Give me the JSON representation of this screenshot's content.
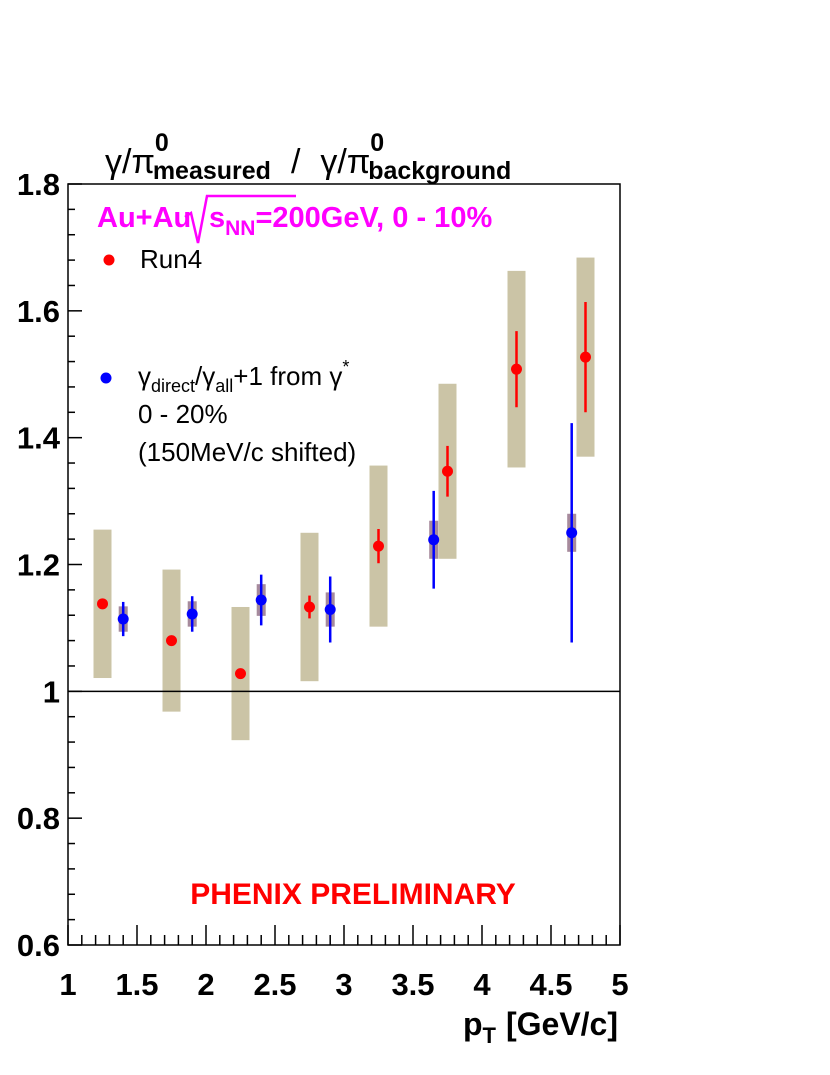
{
  "chart_data": {
    "type": "scatter",
    "ylabel": {
      "part1": "γ/π",
      "part1_sup": "0",
      "part1_sub": "measured",
      "separator": "/",
      "part2": "γ/π",
      "part2_sup": "0",
      "part2_sub": "background"
    },
    "xlabel": {
      "main": "p",
      "sub": "T",
      "unit": "[GeV/c]"
    },
    "header": {
      "prefix": "Au+Au",
      "s": "s",
      "s_sub": "NN",
      "suffix": "=200GeV, 0 - 10%"
    },
    "watermark": "PHENIX PRELIMINARY",
    "xlim": [
      1,
      5
    ],
    "ylim": [
      0.6,
      1.8
    ],
    "x_ticks": [
      1,
      1.5,
      2,
      2.5,
      3,
      3.5,
      4,
      4.5,
      5
    ],
    "x_tick_labels": [
      "1",
      "1.5",
      "2",
      "2.5",
      "3",
      "3.5",
      "4",
      "4.5",
      "5"
    ],
    "y_ticks": [
      0.6,
      0.8,
      1,
      1.2,
      1.4,
      1.6,
      1.8
    ],
    "y_tick_labels": [
      "0.6",
      "0.8",
      "1",
      "1.2",
      "1.4",
      "1.6",
      "1.8"
    ],
    "reference_line": 1,
    "grid": false,
    "legend_position": "top-left",
    "series": [
      {
        "legend_label": "Run4",
        "color": "#ff0000",
        "points": [
          {
            "x": 1.25,
            "y": 1.138,
            "err": 0.0,
            "sys": 0.117
          },
          {
            "x": 1.75,
            "y": 1.08,
            "err": 0.0,
            "sys": 0.112
          },
          {
            "x": 2.25,
            "y": 1.028,
            "err": 0.0,
            "sys": 0.105
          },
          {
            "x": 2.75,
            "y": 1.133,
            "err": 0.018,
            "sys": 0.117
          },
          {
            "x": 3.25,
            "y": 1.229,
            "err": 0.027,
            "sys": 0.127
          },
          {
            "x": 3.75,
            "y": 1.347,
            "err": 0.04,
            "sys": 0.138
          },
          {
            "x": 4.25,
            "y": 1.508,
            "err": 0.06,
            "sys": 0.155
          },
          {
            "x": 4.75,
            "y": 1.527,
            "err": 0.087,
            "sys": 0.157
          }
        ]
      },
      {
        "legend_label": "γ",
        "legend_label_sub1": "direct",
        "legend_label_mid": "/γ",
        "legend_label_sub2": "all",
        "legend_label_tail": "+1 from γ",
        "legend_label_sup": "*",
        "legend_line2": "0 - 20%",
        "legend_line3": "(150MeV/c shifted)",
        "color": "#0000ff",
        "sys_color": "#a68a9c",
        "points": [
          {
            "x": 1.4,
            "y": 1.114,
            "err": 0.027,
            "sys": 0.02
          },
          {
            "x": 1.9,
            "y": 1.122,
            "err": 0.028,
            "sys": 0.02
          },
          {
            "x": 2.4,
            "y": 1.144,
            "err": 0.04,
            "sys": 0.025
          },
          {
            "x": 2.9,
            "y": 1.129,
            "err": 0.052,
            "sys": 0.027
          },
          {
            "x": 3.65,
            "y": 1.239,
            "err": 0.077,
            "sys": 0.03
          },
          {
            "x": 4.65,
            "y": 1.25,
            "err": 0.173,
            "sys": 0.03
          }
        ]
      }
    ]
  }
}
